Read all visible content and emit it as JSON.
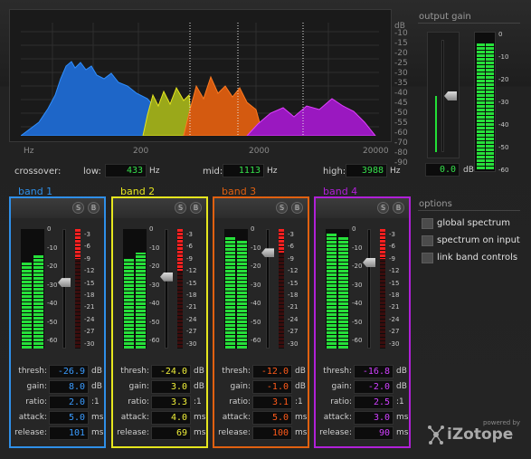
{
  "spectrum": {
    "y_unit": "dB",
    "y_ticks": [
      "-10",
      "-15",
      "-20",
      "-25",
      "-30",
      "-35",
      "-40",
      "-45",
      "-50",
      "-55",
      "-60",
      "-70",
      "-80",
      "-90"
    ],
    "x_ticks": [
      "Hz",
      "200",
      "2000",
      "20000"
    ]
  },
  "crossover": {
    "label": "crossover:",
    "low_label": "low:",
    "low_value": "433",
    "low_unit": "Hz",
    "mid_label": "mid:",
    "mid_value": "1113",
    "mid_unit": "Hz",
    "high_label": "high:",
    "high_value": "3988",
    "high_unit": "Hz"
  },
  "output_gain": {
    "title": "output gain",
    "value": "0.0",
    "unit": "dB",
    "scale": [
      "0",
      "-10",
      "-20",
      "-30",
      "-40",
      "-50",
      "-60"
    ],
    "meter_level": 0.93
  },
  "options": {
    "title": "options",
    "items": [
      {
        "label": "global spectrum"
      },
      {
        "label": "spectrum on input"
      },
      {
        "label": "link band controls"
      }
    ]
  },
  "brand": {
    "powered_by": "powered by",
    "name": "iZotope"
  },
  "band_scales": {
    "input": [
      "0",
      "-10",
      "-20",
      "-30",
      "-40",
      "-50",
      "-60"
    ],
    "gr": [
      "-3",
      "-6",
      "-9",
      "-12",
      "-15",
      "-18",
      "-21",
      "-24",
      "-27",
      "-30"
    ]
  },
  "param_labels": {
    "thresh": "thresh:",
    "gain": "gain:",
    "ratio": "ratio:",
    "attack": "attack:",
    "release": "release:"
  },
  "param_units": {
    "thresh": "dB",
    "gain": "dB",
    "ratio": ":1",
    "attack": "ms",
    "release": "ms"
  },
  "solo_label": "S",
  "bypass_label": "B",
  "bands": [
    {
      "title": "band 1",
      "color": "#2f8fe8",
      "value_color": "#3a9cff",
      "thresh": "-26.9",
      "gain": "8.0",
      "ratio": "2.0",
      "attack": "5.0",
      "release": "101",
      "meter_levels": [
        0.72,
        0.78
      ],
      "gr_level": 0.25
    },
    {
      "title": "band 2",
      "color": "#e6e61e",
      "value_color": "#f0f03a",
      "thresh": "-24.0",
      "gain": "3.0",
      "ratio": "3.3",
      "attack": "4.0",
      "release": "69",
      "meter_levels": [
        0.75,
        0.8
      ],
      "gr_level": 0.35
    },
    {
      "title": "band 3",
      "color": "#e06010",
      "value_color": "#ff5a1a",
      "thresh": "-12.0",
      "gain": "-1.0",
      "ratio": "3.1",
      "attack": "5.0",
      "release": "100",
      "meter_levels": [
        0.93,
        0.9
      ],
      "gr_level": 0.2
    },
    {
      "title": "band 4",
      "color": "#b020d8",
      "value_color": "#d040ff",
      "thresh": "-16.8",
      "gain": "-2.0",
      "ratio": "2.5",
      "attack": "3.0",
      "release": "90",
      "meter_levels": [
        0.97,
        0.93
      ],
      "gr_level": 0.25
    }
  ]
}
